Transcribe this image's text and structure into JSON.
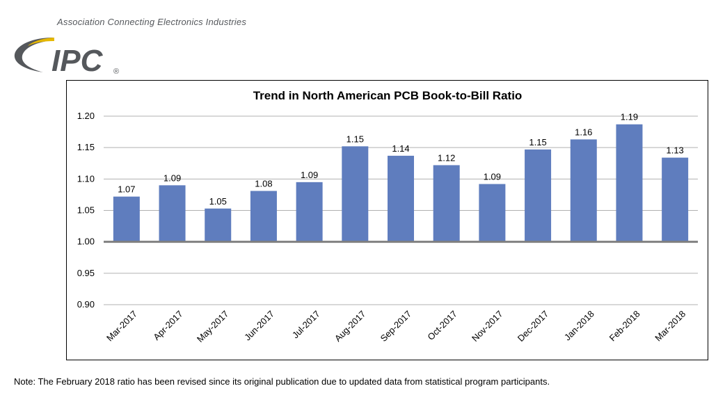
{
  "logo": {
    "tagline": "Association Connecting Electronics Industries",
    "wordmark": "IPC",
    "registered": "®",
    "colors": {
      "swoosh": "#e6b800",
      "text": "#55585c"
    }
  },
  "chart_data": {
    "type": "bar",
    "title": "Trend in North American PCB Book-to-Bill Ratio",
    "categories": [
      "Mar-2017",
      "Apr-2017",
      "May-2017",
      "Jun-2017",
      "Jul-2017",
      "Aug-2017",
      "Sep-2017",
      "Oct-2017",
      "Nov-2017",
      "Dec-2017",
      "Jan-2018",
      "Feb-2018",
      "Mar-2018"
    ],
    "values": [
      1.072,
      1.09,
      1.053,
      1.081,
      1.095,
      1.152,
      1.137,
      1.122,
      1.092,
      1.147,
      1.163,
      1.187,
      1.134
    ],
    "labels": [
      "1.07",
      "1.09",
      "1.05",
      "1.08",
      "1.09",
      "1.15",
      "1.14",
      "1.12",
      "1.09",
      "1.15",
      "1.16",
      "1.19",
      "1.13"
    ],
    "baseline": 1.0,
    "ylim": [
      0.9,
      1.2
    ],
    "yticks": [
      "0.90",
      "0.95",
      "1.00",
      "1.05",
      "1.10",
      "1.15",
      "1.20"
    ],
    "xlabel": "",
    "ylabel": "",
    "grid": true,
    "bar_color": "#5f7dbe"
  },
  "note": "Note: The February 2018 ratio has been revised since its original publication due to updated data from statistical program participants."
}
